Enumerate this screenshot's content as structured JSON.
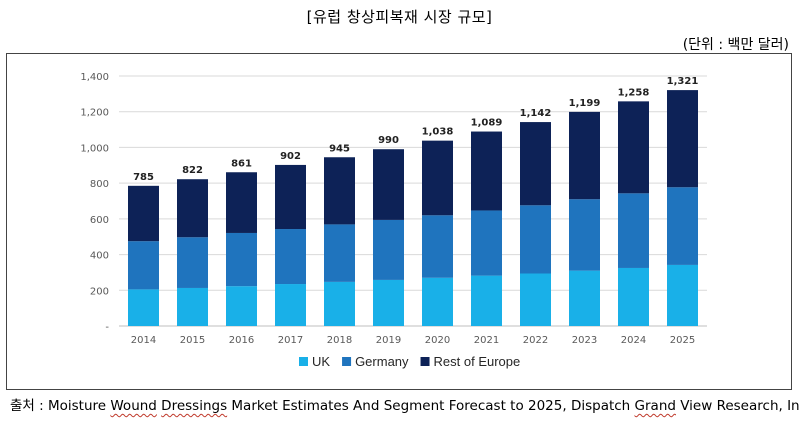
{
  "header": {
    "title": "[유럽 창상피복재 시장 규모]",
    "unit": "(단위 : 백만 달러)"
  },
  "footer": {
    "source_prefix": "출처 : Moisture ",
    "source_w1": "Wound",
    "source_mid1": " ",
    "source_w2": "Dressings",
    "source_mid2": " Market Estimates And Segment Forecast to 2025, Dispatch ",
    "source_w3": "Grand",
    "source_suffix": " View Research, Inc"
  },
  "colors": {
    "UK": "#19b0e8",
    "Germany": "#1f74be",
    "Rest of Europe": "#0d2257"
  },
  "chart_data": {
    "type": "bar",
    "stacked": true,
    "title": "[유럽 창상피복재 시장 규모]",
    "ylabel": "(단위 : 백만 달러)",
    "xlabel": "",
    "ylim": [
      0,
      1400
    ],
    "yticks": [
      "-",
      "200",
      "400",
      "600",
      "800",
      "1,000",
      "1,200",
      "1,400"
    ],
    "grid": true,
    "legend": "bottom",
    "categories": [
      "2014",
      "2015",
      "2016",
      "2017",
      "2018",
      "2019",
      "2020",
      "2021",
      "2022",
      "2023",
      "2024",
      "2025"
    ],
    "series": [
      {
        "name": "UK",
        "values": [
          205,
          213,
          223,
          235,
          247,
          258,
          270,
          282,
          294,
          310,
          325,
          342
        ]
      },
      {
        "name": "Germany",
        "values": [
          270,
          284,
          298,
          308,
          322,
          336,
          350,
          365,
          382,
          400,
          418,
          435
        ]
      },
      {
        "name": "Rest of Europe",
        "values": [
          310,
          325,
          340,
          359,
          376,
          396,
          418,
          442,
          466,
          489,
          515,
          544
        ]
      }
    ],
    "totals": [
      "785",
      "822",
      "861",
      "902",
      "945",
      "990",
      "1,038",
      "1,089",
      "1,142",
      "1,199",
      "1,258",
      "1,321"
    ]
  }
}
